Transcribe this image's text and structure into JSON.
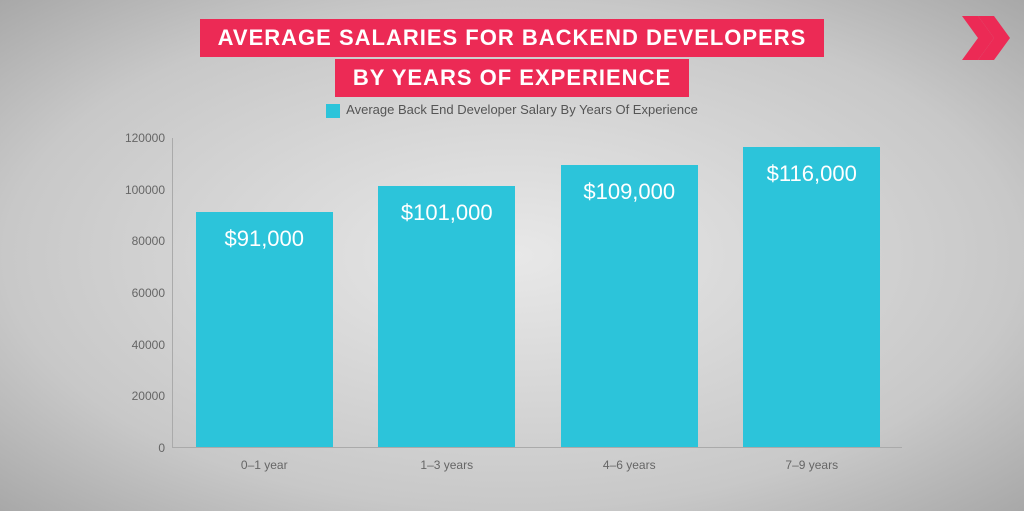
{
  "title": {
    "line1": "AVERAGE SALARIES FOR BACKEND DEVELOPERS",
    "line2": "BY YEARS OF EXPERIENCE",
    "bg_color": "#ec2a55",
    "text_color": "#ffffff",
    "fontsize": 22
  },
  "logo": {
    "color": "#ec2a55"
  },
  "chart": {
    "type": "bar",
    "legend_label": "Average Back End Developer Salary By Years Of Experience",
    "legend_swatch_color": "#2cc4da",
    "legend_text_color": "#555555",
    "categories": [
      "0–1 year",
      "1–3 years",
      "4–6 years",
      "7–9 years"
    ],
    "values": [
      91000,
      101000,
      109000,
      116000
    ],
    "bar_labels": [
      "$91,000",
      "$101,000",
      "$109,000",
      "$116,000"
    ],
    "bar_color": "#2cc4da",
    "bar_label_color": "#ffffff",
    "bar_label_fontsize": 22,
    "ylim": [
      0,
      120000
    ],
    "ytick_step": 20000,
    "yticks": [
      "0",
      "20000",
      "40000",
      "60000",
      "80000",
      "100000",
      "120000"
    ],
    "axis_color": "#aaaaaa",
    "tick_text_color": "#666666",
    "tick_fontsize": 12,
    "bar_width_ratio": 0.75
  }
}
